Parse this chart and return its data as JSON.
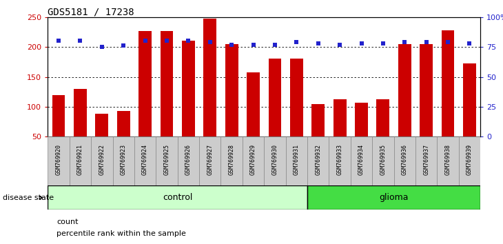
{
  "title": "GDS5181 / 17238",
  "samples": [
    "GSM769920",
    "GSM769921",
    "GSM769922",
    "GSM769923",
    "GSM769924",
    "GSM769925",
    "GSM769926",
    "GSM769927",
    "GSM769928",
    "GSM769929",
    "GSM769930",
    "GSM769931",
    "GSM769932",
    "GSM769933",
    "GSM769934",
    "GSM769935",
    "GSM769936",
    "GSM769937",
    "GSM769938",
    "GSM769939"
  ],
  "counts": [
    120,
    130,
    88,
    93,
    227,
    227,
    211,
    247,
    205,
    158,
    180,
    180,
    105,
    113,
    107,
    112,
    205,
    205,
    228,
    173
  ],
  "percentiles": [
    80,
    80,
    75,
    76,
    80,
    80,
    80,
    79,
    77,
    77,
    77,
    79,
    78,
    77,
    78,
    78,
    79,
    79,
    79,
    78
  ],
  "control_count": 12,
  "glioma_count": 8,
  "bar_color": "#cc0000",
  "dot_color": "#2222cc",
  "control_bg_light": "#ccffcc",
  "glioma_bg": "#44dd44",
  "tick_bg": "#cccccc",
  "ylim_left": [
    50,
    250
  ],
  "ylim_right": [
    0,
    100
  ],
  "yticks_left": [
    50,
    100,
    150,
    200,
    250
  ],
  "yticks_right": [
    0,
    25,
    50,
    75,
    100
  ],
  "ytick_labels_right": [
    "0",
    "25",
    "50",
    "75",
    "100%"
  ],
  "grid_values": [
    100,
    150,
    200
  ],
  "legend_count_label": "count",
  "legend_pct_label": "percentile rank within the sample",
  "disease_state_label": "disease state"
}
